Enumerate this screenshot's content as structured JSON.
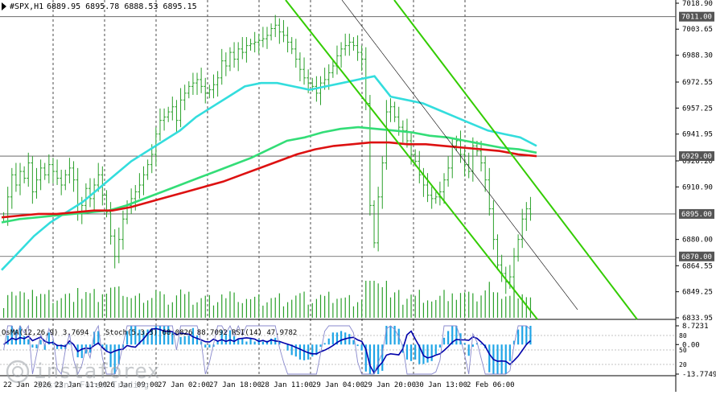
{
  "header": {
    "symbol": "#SPX,H1",
    "ohlc": "6889.95 6895.78 6888.53 6895.15"
  },
  "watermark": {
    "brand": "instaforex",
    "tagline": "Instant Forex Trading"
  },
  "indicator_label": {
    "osma": "OsMA(12,26,9) 3.7694",
    "stoch": "Stoch(5,3,3) 68.0826 88.7092",
    "rsi": "RSI(14) 47.9782"
  },
  "colors": {
    "background": "#ffffff",
    "grid": "#000000",
    "price_bar": "#2aa02a",
    "volume_bar": "#2aa02a",
    "ema_fast": "#33dddd",
    "ema_mid": "#33dd77",
    "ema_slow": "#dd1111",
    "channel": "#33cc00",
    "osma_hist": "#1fa5e6",
    "macd_line": "#0000aa",
    "stoch_main": "#8888cc",
    "stoch_signal": "#cc88cc",
    "level_line": "#555555",
    "tag_bg": "#ffffff"
  },
  "chart_data": [
    {
      "type": "candlestick",
      "title": "#SPX,H1",
      "xlabel": "",
      "ylabel": "",
      "ylim": [
        6833.95,
        7018.9
      ],
      "y_ticks": [
        "7018.90",
        "7003.65",
        "6988.30",
        "6972.55",
        "6957.25",
        "6941.95",
        "6926.20",
        "6910.90",
        "6880.00",
        "6864.55",
        "6849.25",
        "6833.95"
      ],
      "x_ticks": [
        "22 Jan 2026",
        "23 Jan 11:00",
        "26 Jan 09:00",
        "27 Jan 02:00",
        "27 Jan 18:00",
        "28 Jan 11:00",
        "29 Jan 04:00",
        "29 Jan 20:00",
        "30 Jan 13:00",
        "2 Feb 06:00"
      ],
      "levels": [
        {
          "value": 7011.0,
          "label": "7011.00"
        },
        {
          "value": 6929.0,
          "label": "6929.00"
        },
        {
          "value": 6895.0,
          "label": "6895.00"
        },
        {
          "value": 6870.0,
          "label": "6870.00"
        }
      ],
      "close_series": [
        6893,
        6905,
        6918,
        6912,
        6920,
        6916,
        6925,
        6908,
        6915,
        6922,
        6918,
        6924,
        6920,
        6916,
        6912,
        6918,
        6922,
        6915,
        6895,
        6900,
        6910,
        6904,
        6912,
        6918,
        6906,
        6896,
        6882,
        6870,
        6880,
        6892,
        6900,
        6904,
        6908,
        6912,
        6918,
        6924,
        6930,
        6942,
        6950,
        6952,
        6955,
        6958,
        6950,
        6962,
        6966,
        6970,
        6972,
        6974,
        6970,
        6966,
        6968,
        6971,
        6975,
        6985,
        6982,
        6990,
        6986,
        6992,
        6990,
        6994,
        6995,
        6996,
        6997,
        6998,
        7000,
        7004,
        7006,
        7002,
        7000,
        6996,
        6992,
        6986,
        6980,
        6975,
        6972,
        6970,
        6966,
        6972,
        6974,
        6978,
        6982,
        6988,
        6992,
        6994,
        6996,
        6994,
        6990,
        6986,
        6960,
        6900,
        6878,
        6905,
        6925,
        6955,
        6958,
        6952,
        6946,
        6944,
        6938,
        6930,
        6926,
        6918,
        6912,
        6906,
        6904,
        6905,
        6908,
        6915,
        6922,
        6935,
        6938,
        6930,
        6924,
        6920,
        6935,
        6932,
        6925,
        6915,
        6898,
        6880,
        6865,
        6860,
        6855,
        6858,
        6870,
        6880,
        6892,
        6898,
        6895
      ],
      "series": [
        {
          "name": "",
          "color": "#33dddd",
          "values": [
            6862,
            6872,
            6882,
            6890,
            6896,
            6902,
            6910,
            6918,
            6926,
            6932,
            6938,
            6944,
            6952,
            6958,
            6964,
            6970,
            6972,
            6972,
            6970,
            6968,
            6970,
            6972,
            6974,
            6976,
            6964,
            6962,
            6960,
            6956,
            6952,
            6948,
            6944,
            6942,
            6940,
            6935
          ]
        },
        {
          "name": "",
          "color": "#33dd77",
          "values": [
            6890,
            6892,
            6893,
            6894,
            6895,
            6896,
            6897,
            6900,
            6904,
            6908,
            6912,
            6916,
            6920,
            6924,
            6928,
            6933,
            6938,
            6940,
            6943,
            6945,
            6946,
            6945,
            6944,
            6943,
            6941,
            6940,
            6938,
            6936,
            6934,
            6933,
            6931
          ]
        },
        {
          "name": "",
          "color": "#dd1111",
          "values": [
            6893,
            6894,
            6895,
            6895,
            6896,
            6897,
            6897,
            6899,
            6902,
            6905,
            6908,
            6911,
            6914,
            6918,
            6922,
            6926,
            6930,
            6933,
            6935,
            6936,
            6937,
            6937,
            6936,
            6936,
            6935,
            6934,
            6933,
            6932,
            6930,
            6929
          ]
        }
      ]
    },
    {
      "type": "bar",
      "title": "OsMA(12,26,9) 3.7694",
      "ylim": [
        -13.7749,
        8.7231
      ],
      "y_ticks": [
        "8.7231",
        "0.00",
        "-13.7749"
      ],
      "stoch_levels": [
        "80",
        "50",
        "20"
      ],
      "rsi_levels": [
        "70",
        "50",
        "30"
      ]
    }
  ]
}
